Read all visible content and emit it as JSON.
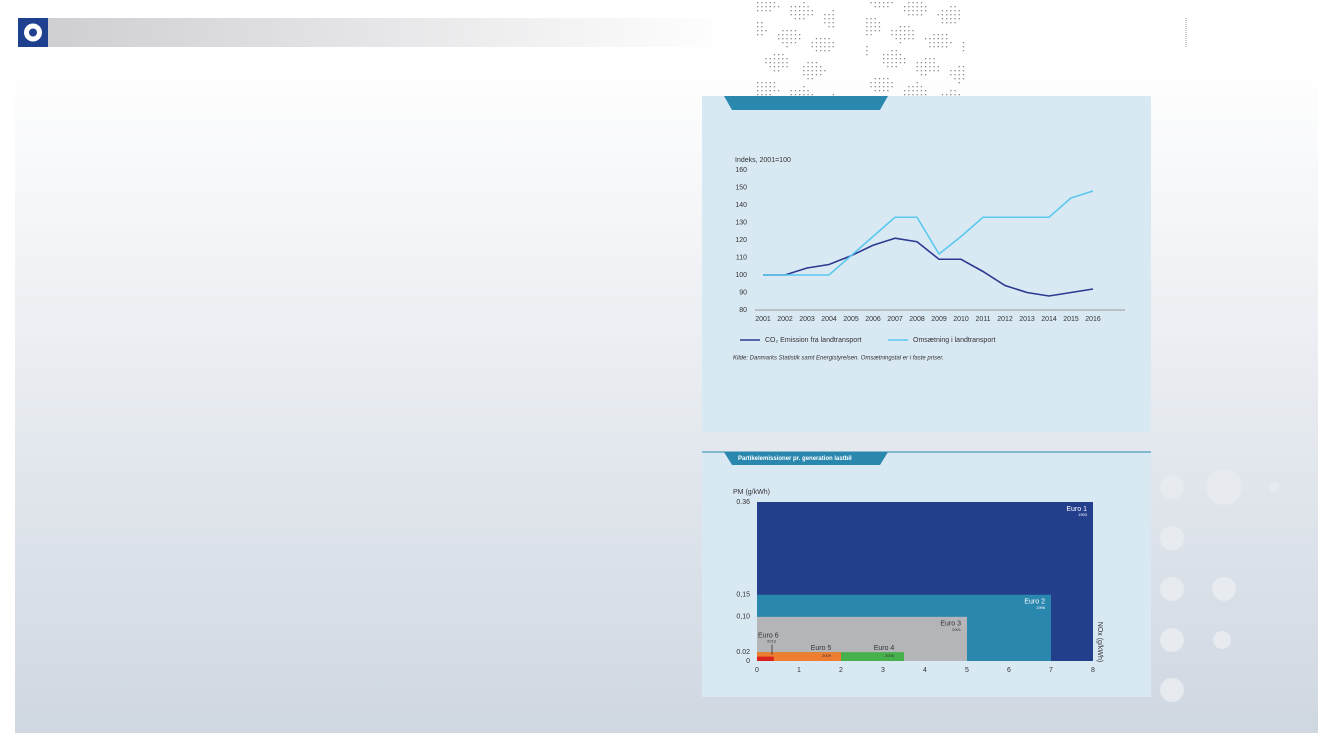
{
  "chart_data": [
    {
      "type": "line",
      "title": "",
      "ylabel": "Indeks, 2001=100",
      "categories": [
        "2001",
        "2002",
        "2003",
        "2004",
        "2005",
        "2006",
        "2007",
        "2008",
        "2009",
        "2010",
        "2011",
        "2012",
        "2013",
        "2014",
        "2015",
        "2016"
      ],
      "series": [
        {
          "name": "CO₂ Emission fra landtransport",
          "color": "#2b3990",
          "values": [
            100,
            100,
            104,
            106,
            111,
            117,
            121,
            119,
            109,
            109,
            102,
            94,
            90,
            88,
            90,
            92
          ]
        },
        {
          "name": "Omsætning i landtransport",
          "color": "#5bc8ee",
          "values": [
            100,
            100,
            100,
            100,
            111,
            122,
            133,
            133,
            112,
            122,
            133,
            133,
            133,
            133,
            144,
            148
          ]
        }
      ],
      "ylim": [
        80,
        160
      ],
      "yticks": [
        80,
        90,
        100,
        110,
        120,
        130,
        140,
        150,
        160
      ],
      "grid": false,
      "note": "Kilde: Danmarks Statistik samt Energistyrelsen. Omsætningstal er i faste priser."
    },
    {
      "type": "bar",
      "title": "Partikelemissioner pr. generation lastbil",
      "ylabel": "PM (g/kWh)",
      "xlabel": "NOx (g/kWh)",
      "categories": [
        "Euro 1",
        "Euro 2",
        "Euro 3",
        "Euro 4",
        "Euro 5",
        "Euro 6"
      ],
      "years": [
        "1993",
        "1996",
        "2001",
        "2006",
        "2009",
        "2013"
      ],
      "x": [
        8,
        7,
        5,
        3.5,
        2,
        0.4
      ],
      "values": [
        0.36,
        0.15,
        0.1,
        0.02,
        0.02,
        0.01
      ],
      "colors": [
        "#233e8b",
        "#2a87ae",
        "#b3b5b8",
        "#46b04a",
        "#ee7d31",
        "#d9241e"
      ],
      "xlim": [
        0,
        8
      ],
      "xticks": [
        0,
        1,
        2,
        3,
        4,
        5,
        6,
        7,
        8
      ],
      "ylim": [
        0,
        0.36
      ],
      "yticks": [
        0,
        {
          "value": 0.02,
          "label": "0.02"
        },
        {
          "value": 0.1,
          "label": "0,10"
        },
        {
          "value": 0.15,
          "label": "0,15"
        },
        {
          "value": 0.36,
          "label": "0.36"
        }
      ]
    }
  ]
}
